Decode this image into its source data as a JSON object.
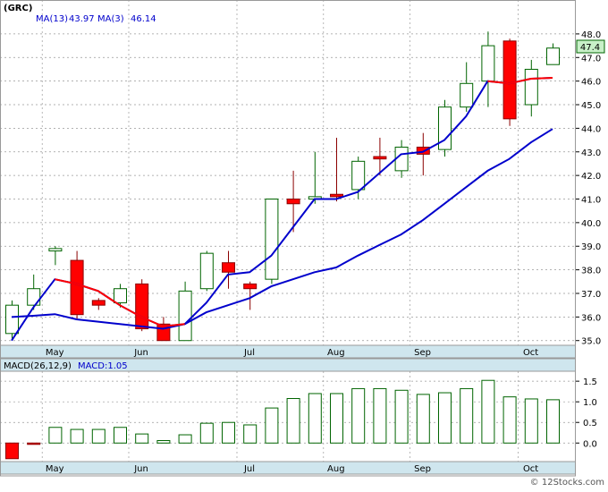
{
  "header": {
    "symbol": "(GRC)",
    "ma_long_label": "MA(13)",
    "ma_long_value": "43.97",
    "ma_short_label": "MA(3)",
    "ma_short_value": "46.14"
  },
  "macd_header": {
    "label": "MACD(26,12,9)",
    "value_label": "MACD:1.05"
  },
  "last_price_tag": "47.4",
  "watermark": "© 12Stocks.com",
  "colors": {
    "up_fill": "#ffffff",
    "up_stroke": "#006400",
    "down_fill": "#ff0000",
    "down_stroke": "#8b0000",
    "ma_long": "#0000cc",
    "ma_short": "#ff0000",
    "macd_bar": "#006400",
    "macd_neg": "#ff0000",
    "axis_band": "#cfe6ee",
    "grid": "#999999",
    "price_tag_bg": "#c8f0c8"
  },
  "chart_data": [
    {
      "type": "candlestick",
      "title": "(GRC)",
      "x_tick_labels": [
        "May",
        "Jun",
        "Jul",
        "Aug",
        "Sep",
        "Oct"
      ],
      "x_tick_index": [
        1,
        5,
        10,
        14,
        18,
        23
      ],
      "y_ticks": [
        "35.0",
        "36.0",
        "37.0",
        "38.0",
        "39.0",
        "40.0",
        "41.0",
        "42.0",
        "43.0",
        "44.0",
        "45.0",
        "46.0",
        "47.0",
        "48.0"
      ],
      "ylim": [
        34.8,
        48.3
      ],
      "grid": true,
      "candles": [
        {
          "o": 35.3,
          "h": 36.7,
          "l": 35.0,
          "c": 36.5
        },
        {
          "o": 36.5,
          "h": 37.8,
          "l": 36.3,
          "c": 37.2
        },
        {
          "o": 38.8,
          "h": 39.0,
          "l": 38.2,
          "c": 38.9
        },
        {
          "o": 38.4,
          "h": 38.8,
          "l": 35.9,
          "c": 36.1
        },
        {
          "o": 36.7,
          "h": 36.8,
          "l": 36.3,
          "c": 36.5
        },
        {
          "o": 36.6,
          "h": 37.4,
          "l": 36.4,
          "c": 37.2
        },
        {
          "o": 37.4,
          "h": 37.6,
          "l": 35.4,
          "c": 35.5
        },
        {
          "o": 35.7,
          "h": 36.0,
          "l": 35.0,
          "c": 35.0
        },
        {
          "o": 35.0,
          "h": 37.5,
          "l": 35.0,
          "c": 37.1
        },
        {
          "o": 37.2,
          "h": 38.8,
          "l": 37.1,
          "c": 38.7
        },
        {
          "o": 38.3,
          "h": 38.8,
          "l": 37.2,
          "c": 37.9
        },
        {
          "o": 37.4,
          "h": 37.5,
          "l": 36.3,
          "c": 37.2
        },
        {
          "o": 37.6,
          "h": 41.0,
          "l": 37.4,
          "c": 41.0
        },
        {
          "o": 41.0,
          "h": 42.2,
          "l": 39.6,
          "c": 40.8
        },
        {
          "o": 41.0,
          "h": 43.0,
          "l": 40.8,
          "c": 41.1
        },
        {
          "o": 41.2,
          "h": 43.6,
          "l": 40.9,
          "c": 41.1
        },
        {
          "o": 41.4,
          "h": 42.8,
          "l": 41.0,
          "c": 42.6
        },
        {
          "o": 42.8,
          "h": 43.6,
          "l": 42.0,
          "c": 42.7
        },
        {
          "o": 42.2,
          "h": 43.5,
          "l": 41.9,
          "c": 43.2
        },
        {
          "o": 43.2,
          "h": 43.8,
          "l": 42.0,
          "c": 42.9
        },
        {
          "o": 43.1,
          "h": 45.2,
          "l": 42.8,
          "c": 44.9
        },
        {
          "o": 44.9,
          "h": 46.8,
          "l": 44.7,
          "c": 45.9
        },
        {
          "o": 46.0,
          "h": 48.1,
          "l": 44.9,
          "c": 47.5
        },
        {
          "o": 47.7,
          "h": 47.8,
          "l": 44.1,
          "c": 44.4
        },
        {
          "o": 45.0,
          "h": 46.9,
          "l": 44.5,
          "c": 46.5
        },
        {
          "o": 46.7,
          "h": 47.6,
          "l": 46.7,
          "c": 47.4
        }
      ],
      "series": [
        {
          "name": "MA(13)",
          "values": [
            36.0,
            36.05,
            36.12,
            35.9,
            35.8,
            35.7,
            35.6,
            35.5,
            35.7,
            36.2,
            36.5,
            36.8,
            37.3,
            37.6,
            37.9,
            38.1,
            38.6,
            39.05,
            39.5,
            40.1,
            40.8,
            41.5,
            42.2,
            42.7,
            43.4,
            43.97
          ]
        },
        {
          "name": "MA(3)",
          "values": [
            35.0,
            36.4,
            37.6,
            37.4,
            37.1,
            36.5,
            36.0,
            35.6,
            35.7,
            36.6,
            37.8,
            37.9,
            38.6,
            39.8,
            41.0,
            41.0,
            41.3,
            42.1,
            42.9,
            43.0,
            43.5,
            44.5,
            46.0,
            45.9,
            46.1,
            46.14
          ]
        }
      ]
    },
    {
      "type": "bar",
      "title": "MACD(26,12,9)",
      "x_tick_labels": [
        "May",
        "Jun",
        "Jul",
        "Aug",
        "Sep",
        "Oct"
      ],
      "x_tick_index": [
        1,
        5,
        10,
        14,
        18,
        23
      ],
      "y_ticks": [
        "0.0",
        "0.5",
        "1.0",
        "1.5"
      ],
      "ylim": [
        -0.45,
        1.72
      ],
      "values": [
        -0.38,
        -0.03,
        0.38,
        0.33,
        0.33,
        0.38,
        0.22,
        0.06,
        0.2,
        0.48,
        0.5,
        0.44,
        0.85,
        1.08,
        1.2,
        1.2,
        1.32,
        1.32,
        1.28,
        1.18,
        1.22,
        1.32,
        1.52,
        1.12,
        1.07,
        1.05
      ]
    }
  ]
}
